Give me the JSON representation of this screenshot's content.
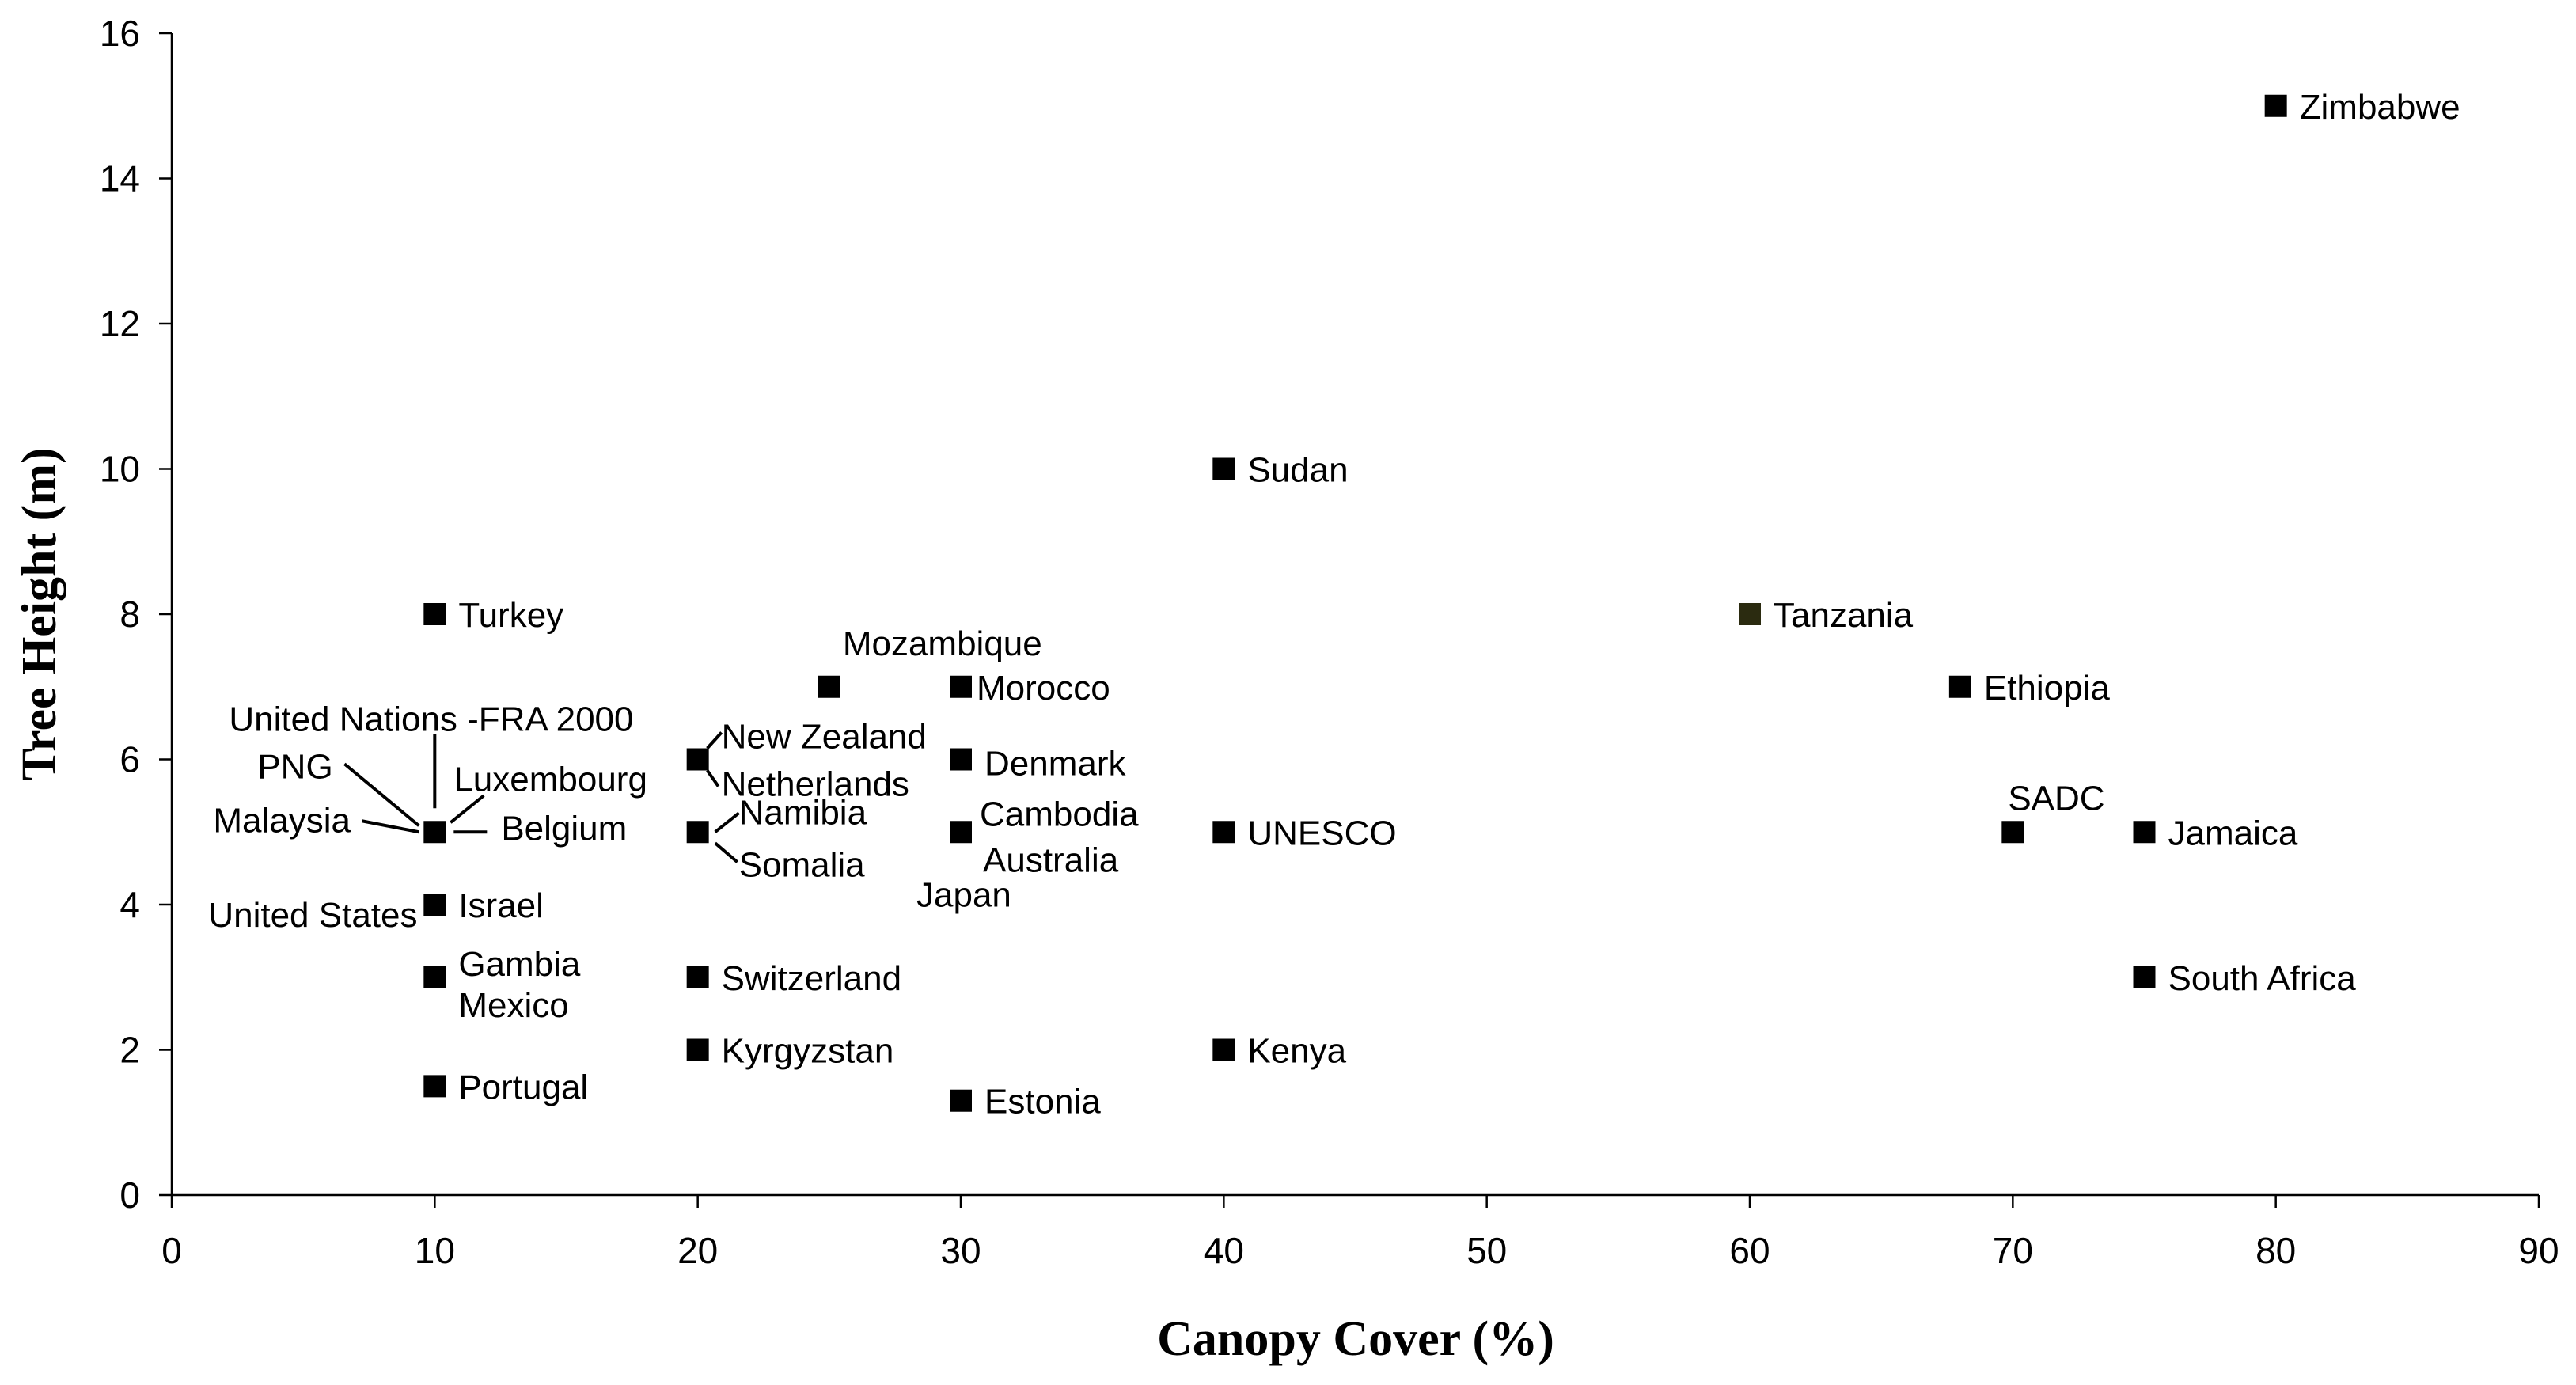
{
  "chart_data": {
    "type": "scatter",
    "xlabel": "Canopy Cover (%)",
    "ylabel": "Tree Height (m)",
    "xlim": [
      0,
      90
    ],
    "ylim": [
      0,
      16
    ],
    "xticks": [
      0,
      10,
      20,
      30,
      40,
      50,
      60,
      70,
      80,
      90
    ],
    "yticks": [
      0,
      2,
      4,
      6,
      8,
      10,
      12,
      14,
      16
    ],
    "grid": false,
    "legend": "none",
    "marker_color": "#000000",
    "points": [
      {
        "label": "Zimbabwe",
        "x": 80,
        "y": 15
      },
      {
        "label": "Sudan",
        "x": 40,
        "y": 10
      },
      {
        "label": "Turkey",
        "x": 10,
        "y": 8
      },
      {
        "label": "Tanzania",
        "x": 60,
        "y": 8,
        "color": "#2b2b10"
      },
      {
        "label": "Mozambique",
        "x": 25,
        "y": 7
      },
      {
        "label": "Morocco",
        "x": 30,
        "y": 7
      },
      {
        "label": "Ethiopia",
        "x": 68,
        "y": 7
      },
      {
        "label": "New Zealand",
        "x": 20,
        "y": 6
      },
      {
        "label": "Netherlands",
        "x": 20,
        "y": 6
      },
      {
        "label": "Denmark",
        "x": 30,
        "y": 6
      },
      {
        "label": "United Nations -FRA 2000",
        "x": 10,
        "y": 5
      },
      {
        "label": "PNG",
        "x": 10,
        "y": 5
      },
      {
        "label": "Luxembourg",
        "x": 10,
        "y": 5
      },
      {
        "label": "Malaysia",
        "x": 10,
        "y": 5
      },
      {
        "label": "Belgium",
        "x": 10,
        "y": 5
      },
      {
        "label": "Namibia",
        "x": 20,
        "y": 5
      },
      {
        "label": "Somalia",
        "x": 20,
        "y": 5
      },
      {
        "label": "Cambodia",
        "x": 30,
        "y": 5
      },
      {
        "label": "Australia",
        "x": 30,
        "y": 5
      },
      {
        "label": "Japan",
        "x": 30,
        "y": 5
      },
      {
        "label": "UNESCO",
        "x": 40,
        "y": 5
      },
      {
        "label": "SADC",
        "x": 70,
        "y": 5
      },
      {
        "label": "Jamaica",
        "x": 75,
        "y": 5
      },
      {
        "label": "United States",
        "x": 10,
        "y": 4
      },
      {
        "label": "Israel",
        "x": 10,
        "y": 4
      },
      {
        "label": "Gambia",
        "x": 10,
        "y": 3
      },
      {
        "label": "Mexico",
        "x": 10,
        "y": 3
      },
      {
        "label": "Switzerland",
        "x": 20,
        "y": 3
      },
      {
        "label": "South Africa",
        "x": 75,
        "y": 3
      },
      {
        "label": "Kyrgyzstan",
        "x": 20,
        "y": 2
      },
      {
        "label": "Kenya",
        "x": 40,
        "y": 2
      },
      {
        "label": "Portugal",
        "x": 10,
        "y": 1.5
      },
      {
        "label": "Estonia",
        "x": 30,
        "y": 1.3
      }
    ]
  }
}
